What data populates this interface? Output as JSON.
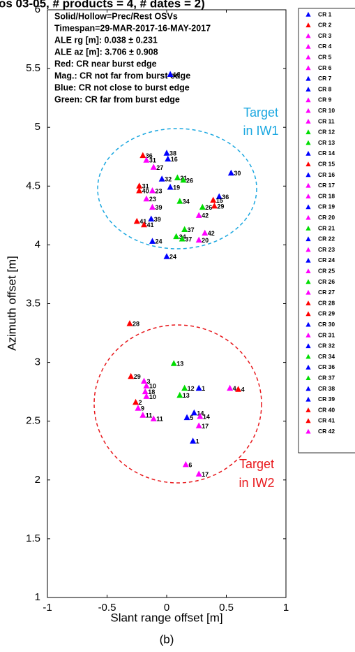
{
  "chart_data": {
    "type": "scatter",
    "title": "os 03-05, # products = 4, # dates = 2)",
    "xlabel": "Slant range offset [m]",
    "ylabel": "Azimuth offset [m]",
    "caption": "(b)",
    "annotations": [
      "Solid/Hollow=Prec/Rest OSVs",
      "Timespan=29-MAR-2017-16-MAY-2017",
      "ALE rg [m]: 0.038 ± 0.231",
      "ALE az [m]: 3.706 ± 0.908",
      "Red: CR near burst edge",
      "Mag.: CR not far from burst edge",
      "Blue: CR not close to burst edge",
      "Green: CR far from burst edge"
    ],
    "target_labels": [
      [
        "Target",
        "in IW1"
      ],
      [
        "Target",
        "in IW2"
      ]
    ],
    "xlim": [
      -1,
      1
    ],
    "xticks": [
      -1,
      -0.5,
      0,
      0.5,
      1
    ],
    "ylim": [
      1,
      6
    ],
    "yticks": [
      1,
      1.5,
      2,
      2.5,
      3,
      3.5,
      4,
      4.5,
      5,
      5.5,
      6
    ],
    "grid": false,
    "points": [
      {
        "label": "10",
        "x": 0.03,
        "y": 5.45,
        "color": "#0000ff"
      },
      {
        "label": "38",
        "x": 0.0,
        "y": 4.78,
        "color": "#0000ff"
      },
      {
        "label": "16",
        "x": 0.01,
        "y": 4.73,
        "color": "#0000ff"
      },
      {
        "label": "36",
        "x": -0.2,
        "y": 4.76,
        "color": "#ff0000"
      },
      {
        "label": "31",
        "x": -0.17,
        "y": 4.72,
        "color": "#ff00ff"
      },
      {
        "label": "27",
        "x": -0.11,
        "y": 4.66,
        "color": "#ff00ff"
      },
      {
        "label": "30",
        "x": 0.54,
        "y": 4.61,
        "color": "#0000ff"
      },
      {
        "label": "32",
        "x": -0.04,
        "y": 4.56,
        "color": "#0000ff"
      },
      {
        "label": "21",
        "x": 0.09,
        "y": 4.57,
        "color": "#00dd00"
      },
      {
        "label": "26",
        "x": 0.14,
        "y": 4.55,
        "color": "#00dd00"
      },
      {
        "label": "19",
        "x": 0.03,
        "y": 4.49,
        "color": "#0000ff"
      },
      {
        "label": "31",
        "x": -0.23,
        "y": 4.5,
        "color": "#ff0000"
      },
      {
        "label": "40",
        "x": -0.23,
        "y": 4.46,
        "color": "#ff0000"
      },
      {
        "label": "23",
        "x": -0.12,
        "y": 4.46,
        "color": "#ff00ff"
      },
      {
        "label": "36",
        "x": 0.44,
        "y": 4.41,
        "color": "#0000ff"
      },
      {
        "label": "15",
        "x": 0.39,
        "y": 4.38,
        "color": "#ff0000"
      },
      {
        "label": "34",
        "x": 0.11,
        "y": 4.37,
        "color": "#00dd00"
      },
      {
        "label": "23",
        "x": -0.17,
        "y": 4.39,
        "color": "#ff00ff"
      },
      {
        "label": "29",
        "x": 0.4,
        "y": 4.33,
        "color": "#ff0000"
      },
      {
        "label": "26",
        "x": 0.3,
        "y": 4.32,
        "color": "#00dd00"
      },
      {
        "label": "39",
        "x": -0.12,
        "y": 4.32,
        "color": "#ff00ff"
      },
      {
        "label": "42",
        "x": 0.27,
        "y": 4.25,
        "color": "#ff00ff"
      },
      {
        "label": "39",
        "x": -0.13,
        "y": 4.22,
        "color": "#0000ff"
      },
      {
        "label": "41",
        "x": -0.25,
        "y": 4.2,
        "color": "#ff0000"
      },
      {
        "label": "41",
        "x": -0.19,
        "y": 4.17,
        "color": "#ff0000"
      },
      {
        "label": "37",
        "x": 0.15,
        "y": 4.13,
        "color": "#00dd00"
      },
      {
        "label": "42",
        "x": 0.32,
        "y": 4.1,
        "color": "#ff00ff"
      },
      {
        "label": "34",
        "x": 0.08,
        "y": 4.07,
        "color": "#00dd00"
      },
      {
        "label": "37",
        "x": 0.13,
        "y": 4.05,
        "color": "#00dd00"
      },
      {
        "label": "20",
        "x": 0.27,
        "y": 4.04,
        "color": "#ff00ff"
      },
      {
        "label": "24",
        "x": -0.12,
        "y": 4.03,
        "color": "#0000ff"
      },
      {
        "label": "24",
        "x": 0.0,
        "y": 3.9,
        "color": "#0000ff"
      },
      {
        "label": "28",
        "x": -0.31,
        "y": 3.33,
        "color": "#ff0000"
      },
      {
        "label": "13",
        "x": 0.06,
        "y": 2.99,
        "color": "#00dd00"
      },
      {
        "label": "29",
        "x": -0.3,
        "y": 2.88,
        "color": "#ff0000"
      },
      {
        "label": "3",
        "x": -0.19,
        "y": 2.84,
        "color": "#ff00ff"
      },
      {
        "label": "10",
        "x": -0.17,
        "y": 2.8,
        "color": "#ff00ff"
      },
      {
        "label": "12",
        "x": 0.15,
        "y": 2.78,
        "color": "#00dd00"
      },
      {
        "label": "1",
        "x": 0.27,
        "y": 2.78,
        "color": "#0000ff"
      },
      {
        "label": "4",
        "x": 0.53,
        "y": 2.78,
        "color": "#ff00ff"
      },
      {
        "label": "4",
        "x": 0.6,
        "y": 2.77,
        "color": "#ff0000"
      },
      {
        "label": "18",
        "x": -0.18,
        "y": 2.75,
        "color": "#ff00ff"
      },
      {
        "label": "10",
        "x": -0.17,
        "y": 2.71,
        "color": "#ff00ff"
      },
      {
        "label": "13",
        "x": 0.11,
        "y": 2.72,
        "color": "#00dd00"
      },
      {
        "label": "14",
        "x": 0.23,
        "y": 2.57,
        "color": "#0000ff"
      },
      {
        "label": "14",
        "x": 0.28,
        "y": 2.54,
        "color": "#ff00ff"
      },
      {
        "label": "5",
        "x": 0.17,
        "y": 2.53,
        "color": "#0000ff"
      },
      {
        "label": "2",
        "x": -0.26,
        "y": 2.66,
        "color": "#ff0000"
      },
      {
        "label": "9",
        "x": -0.24,
        "y": 2.61,
        "color": "#ff00ff"
      },
      {
        "label": "11",
        "x": -0.2,
        "y": 2.55,
        "color": "#ff00ff"
      },
      {
        "label": "11",
        "x": -0.11,
        "y": 2.52,
        "color": "#ff00ff"
      },
      {
        "label": "17",
        "x": 0.27,
        "y": 2.46,
        "color": "#ff00ff"
      },
      {
        "label": "1",
        "x": 0.22,
        "y": 2.33,
        "color": "#0000ff"
      },
      {
        "label": "6",
        "x": 0.16,
        "y": 2.13,
        "color": "#ff00ff"
      },
      {
        "label": "17",
        "x": 0.27,
        "y": 2.05,
        "color": "#ff00ff"
      }
    ],
    "legend": [
      {
        "name": "CR 1",
        "color": "#0000ff"
      },
      {
        "name": "CR 2",
        "color": "#ff0000"
      },
      {
        "name": "CR 3",
        "color": "#ff00ff"
      },
      {
        "name": "CR 4",
        "color": "#ff00ff"
      },
      {
        "name": "CR 5",
        "color": "#ff00ff"
      },
      {
        "name": "CR 6",
        "color": "#ff00ff"
      },
      {
        "name": "CR 7",
        "color": "#0000ff"
      },
      {
        "name": "CR 8",
        "color": "#0000ff"
      },
      {
        "name": "CR 9",
        "color": "#ff00ff"
      },
      {
        "name": "CR 10",
        "color": "#ff00ff"
      },
      {
        "name": "CR 11",
        "color": "#ff00ff"
      },
      {
        "name": "CR 12",
        "color": "#00dd00"
      },
      {
        "name": "CR 13",
        "color": "#00dd00"
      },
      {
        "name": "CR 14",
        "color": "#0000ff"
      },
      {
        "name": "CR 15",
        "color": "#ff0000"
      },
      {
        "name": "CR 16",
        "color": "#0000ff"
      },
      {
        "name": "CR 17",
        "color": "#ff00ff"
      },
      {
        "name": "CR 18",
        "color": "#ff00ff"
      },
      {
        "name": "CR 19",
        "color": "#0000ff"
      },
      {
        "name": "CR 20",
        "color": "#ff00ff"
      },
      {
        "name": "CR 21",
        "color": "#00dd00"
      },
      {
        "name": "CR 22",
        "color": "#0000ff"
      },
      {
        "name": "CR 23",
        "color": "#ff00ff"
      },
      {
        "name": "CR 24",
        "color": "#0000ff"
      },
      {
        "name": "CR 25",
        "color": "#ff00ff"
      },
      {
        "name": "CR 26",
        "color": "#00dd00"
      },
      {
        "name": "CR 27",
        "color": "#ff00ff"
      },
      {
        "name": "CR 28",
        "color": "#ff0000"
      },
      {
        "name": "CR 29",
        "color": "#ff0000"
      },
      {
        "name": "CR 30",
        "color": "#0000ff"
      },
      {
        "name": "CR 31",
        "color": "#ff00ff"
      },
      {
        "name": "CR 32",
        "color": "#0000ff"
      },
      {
        "name": "CR 34",
        "color": "#00dd00"
      },
      {
        "name": "CR 36",
        "color": "#0000ff"
      },
      {
        "name": "CR 37",
        "color": "#00dd00"
      },
      {
        "name": "CR 38",
        "color": "#0000ff"
      },
      {
        "name": "CR 39",
        "color": "#0000ff"
      },
      {
        "name": "CR 40",
        "color": "#ff0000"
      },
      {
        "name": "CR 41",
        "color": "#ff0000"
      },
      {
        "name": "CR 42",
        "color": "#ff00ff"
      }
    ]
  }
}
